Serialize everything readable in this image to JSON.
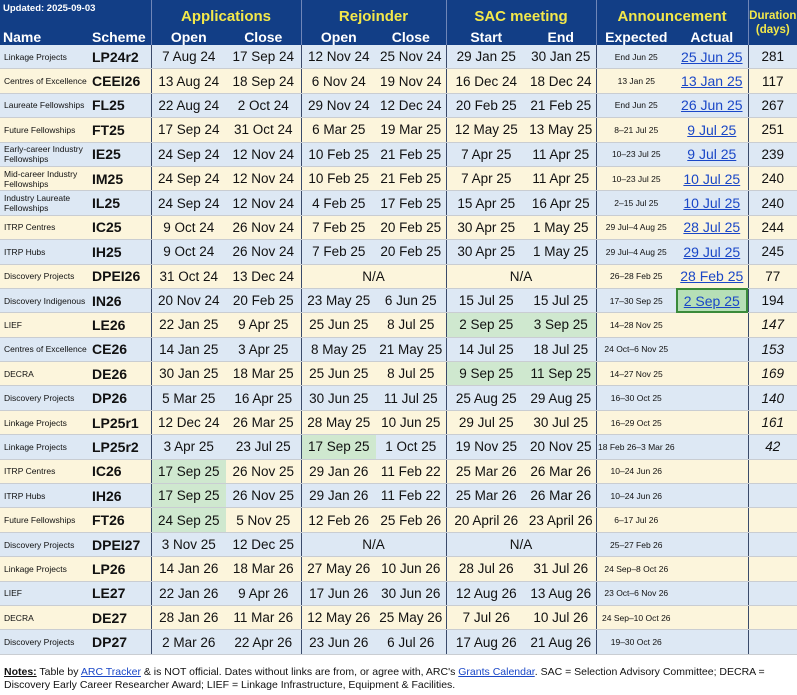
{
  "updated": "Updated: 2025-09-03",
  "headers": {
    "applications": "Applications",
    "rejoinder": "Rejoinder",
    "sac": "SAC meeting",
    "announcement": "Announcement",
    "duration": "Duration (days)",
    "name": "Name",
    "scheme": "Scheme",
    "open": "Open",
    "close": "Close",
    "start": "Start",
    "end": "End",
    "expected": "Expected",
    "actual": "Actual"
  },
  "rows": [
    {
      "name": "Linkage Projects",
      "scheme": "LP24r2",
      "app_open": "7 Aug 24",
      "app_close": "17 Sep 24",
      "rej_open": "12 Nov 24",
      "rej_close": "25 Nov 24",
      "sac_start": "29 Jan 25",
      "sac_end": "30 Jan 25",
      "expected": "End Jun 25",
      "actual": "25 Jun 25",
      "duration": "281"
    },
    {
      "name": "Centres of Excellence",
      "scheme": "CEEI26",
      "app_open": "13 Aug 24",
      "app_close": "18 Sep 24",
      "rej_open": "6 Nov 24",
      "rej_close": "19 Nov 24",
      "sac_start": "16 Dec 24",
      "sac_end": "18 Dec 24",
      "expected": "13 Jan 25",
      "actual": "13 Jan 25",
      "duration": "117"
    },
    {
      "name": "Laureate Fellowships",
      "scheme": "FL25",
      "app_open": "22 Aug 24",
      "app_close": "2 Oct 24",
      "rej_open": "29 Nov 24",
      "rej_close": "12 Dec 24",
      "sac_start": "20 Feb 25",
      "sac_end": "21 Feb 25",
      "expected": "End Jun 25",
      "actual": "26 Jun 25",
      "duration": "267"
    },
    {
      "name": "Future Fellowships",
      "scheme": "FT25",
      "app_open": "17 Sep 24",
      "app_close": "31 Oct 24",
      "rej_open": "6 Mar 25",
      "rej_close": "19 Mar 25",
      "sac_start": "12 May 25",
      "sac_end": "13 May 25",
      "expected": "8–21 Jul 25",
      "actual": "9 Jul 25",
      "duration": "251"
    },
    {
      "name": "Early-career Industry Fellowships",
      "scheme": "IE25",
      "app_open": "24 Sep 24",
      "app_close": "12 Nov 24",
      "rej_open": "10 Feb 25",
      "rej_close": "21 Feb 25",
      "sac_start": "7 Apr 25",
      "sac_end": "11 Apr 25",
      "expected": "10–23 Jul 25",
      "actual": "9 Jul 25",
      "duration": "239"
    },
    {
      "name": "Mid-career Industry Fellowships",
      "scheme": "IM25",
      "app_open": "24 Sep 24",
      "app_close": "12 Nov 24",
      "rej_open": "10 Feb 25",
      "rej_close": "21 Feb 25",
      "sac_start": "7 Apr 25",
      "sac_end": "11 Apr 25",
      "expected": "10–23 Jul 25",
      "actual": "10 Jul 25",
      "duration": "240"
    },
    {
      "name": "Industry Laureate Fellowships",
      "scheme": "IL25",
      "app_open": "24 Sep 24",
      "app_close": "12 Nov 24",
      "rej_open": "4 Feb 25",
      "rej_close": "17 Feb 25",
      "sac_start": "15 Apr 25",
      "sac_end": "16 Apr 25",
      "expected": "2–15 Jul 25",
      "actual": "10 Jul 25",
      "duration": "240"
    },
    {
      "name": "ITRP Centres",
      "scheme": "IC25",
      "app_open": "9 Oct 24",
      "app_close": "26 Nov 24",
      "rej_open": "7 Feb 25",
      "rej_close": "20 Feb 25",
      "sac_start": "30 Apr 25",
      "sac_end": "1 May 25",
      "expected": "29 Jul–4 Aug 25",
      "actual": "28 Jul 25",
      "duration": "244"
    },
    {
      "name": "ITRP Hubs",
      "scheme": "IH25",
      "app_open": "9 Oct 24",
      "app_close": "26 Nov 24",
      "rej_open": "7 Feb 25",
      "rej_close": "20 Feb 25",
      "sac_start": "30 Apr 25",
      "sac_end": "1 May 25",
      "expected": "29 Jul–4 Aug 25",
      "actual": "29 Jul 25",
      "duration": "245"
    },
    {
      "name": "Discovery Projects",
      "scheme": "DPEI26",
      "app_open": "31 Oct 24",
      "app_close": "13 Dec 24",
      "rej_na": "N/A",
      "sac_na": "N/A",
      "expected": "26–28 Feb 25",
      "actual": "28 Feb 25",
      "duration": "77"
    },
    {
      "name": "Discovery Indigenous",
      "scheme": "IN26",
      "app_open": "20 Nov 24",
      "app_close": "20 Feb 25",
      "rej_open": "23 May 25",
      "rej_close": "6 Jun 25",
      "sac_start": "15 Jul 25",
      "sac_end": "15 Jul 25",
      "expected": "17–30 Sep 25",
      "actual": "2 Sep 25",
      "duration": "194"
    },
    {
      "name": "LIEF",
      "scheme": "LE26",
      "app_open": "22 Jan 25",
      "app_close": "9 Apr 25",
      "rej_open": "25 Jun 25",
      "rej_close": "8 Jul 25",
      "sac_start": "2 Sep 25",
      "sac_end": "3 Sep 25",
      "expected": "14–28 Nov 25",
      "actual": "",
      "duration": "147"
    },
    {
      "name": "Centres of Excellence",
      "scheme": "CE26",
      "app_open": "14 Jan 25",
      "app_close": "3 Apr 25",
      "rej_open": "8 May 25",
      "rej_close": "21 May 25",
      "sac_start": "14 Jul 25",
      "sac_end": "18 Jul 25",
      "expected": "24 Oct–6 Nov 25",
      "actual": "",
      "duration": "153"
    },
    {
      "name": "DECRA",
      "scheme": "DE26",
      "app_open": "30 Jan 25",
      "app_close": "18 Mar 25",
      "rej_open": "25 Jun 25",
      "rej_close": "8 Jul 25",
      "sac_start": "9 Sep 25",
      "sac_end": "11 Sep 25",
      "expected": "14–27 Nov 25",
      "actual": "",
      "duration": "169"
    },
    {
      "name": "Discovery Projects",
      "scheme": "DP26",
      "app_open": "5 Mar 25",
      "app_close": "16 Apr 25",
      "rej_open": "30 Jun 25",
      "rej_close": "11 Jul 25",
      "sac_start": "25 Aug 25",
      "sac_end": "29 Aug 25",
      "expected": "16–30 Oct 25",
      "actual": "",
      "duration": "140"
    },
    {
      "name": "Linkage Projects",
      "scheme": "LP25r1",
      "app_open": "12 Dec 24",
      "app_close": "26 Mar 25",
      "rej_open": "28 May 25",
      "rej_close": "10 Jun 25",
      "sac_start": "29 Jul 25",
      "sac_end": "30 Jul 25",
      "expected": "16–29 Oct 25",
      "actual": "",
      "duration": "161"
    },
    {
      "name": "Linkage Projects",
      "scheme": "LP25r2",
      "app_open": "3 Apr 25",
      "app_close": "23 Jul 25",
      "rej_open": "17 Sep 25",
      "rej_close": "1 Oct 25",
      "sac_start": "19 Nov 25",
      "sac_end": "20 Nov 25",
      "expected": "18 Feb 26–3 Mar 26",
      "actual": "",
      "duration": "42"
    },
    {
      "name": "ITRP Centres",
      "scheme": "IC26",
      "app_open": "17 Sep 25",
      "app_close": "26 Nov 25",
      "rej_open": "29 Jan 26",
      "rej_close": "11 Feb 22",
      "sac_start": "25 Mar 26",
      "sac_end": "26 Mar 26",
      "expected": "10–24 Jun 26",
      "actual": "",
      "duration": ""
    },
    {
      "name": "ITRP Hubs",
      "scheme": "IH26",
      "app_open": "17 Sep 25",
      "app_close": "26 Nov 25",
      "rej_open": "29 Jan 26",
      "rej_close": "11 Feb 22",
      "sac_start": "25 Mar 26",
      "sac_end": "26 Mar 26",
      "expected": "10–24 Jun 26",
      "actual": "",
      "duration": ""
    },
    {
      "name": "Future Fellowships",
      "scheme": "FT26",
      "app_open": "24 Sep 25",
      "app_close": "5 Nov 25",
      "rej_open": "12 Feb 26",
      "rej_close": "25 Feb 26",
      "sac_start": "20 April 26",
      "sac_end": "23 April 26",
      "expected": "6–17 Jul 26",
      "actual": "",
      "duration": ""
    },
    {
      "name": "Discovery Projects",
      "scheme": "DPEI27",
      "app_open": "3 Nov 25",
      "app_close": "12 Dec 25",
      "rej_na": "N/A",
      "sac_na": "N/A",
      "expected": "25–27 Feb 26",
      "actual": "",
      "duration": ""
    },
    {
      "name": "Linkage Projects",
      "scheme": "LP26",
      "app_open": "14 Jan 26",
      "app_close": "18 Mar 26",
      "rej_open": "27 May 26",
      "rej_close": "10 Jun 26",
      "sac_start": "28 Jul 26",
      "sac_end": "31 Jul 26",
      "expected": "24 Sep–8 Oct 26",
      "actual": "",
      "duration": ""
    },
    {
      "name": "LIEF",
      "scheme": "LE27",
      "app_open": "22 Jan 26",
      "app_close": "9 Apr 26",
      "rej_open": "17 Jun 26",
      "rej_close": "30 Jun 26",
      "sac_start": "12 Aug 26",
      "sac_end": "13 Aug 26",
      "expected": "23 Oct–6 Nov 26",
      "actual": "",
      "duration": ""
    },
    {
      "name": "DECRA",
      "scheme": "DE27",
      "app_open": "28 Jan 26",
      "app_close": "11 Mar 26",
      "rej_open": "12 May 26",
      "rej_close": "25 May 26",
      "sac_start": "7 Jul 26",
      "sac_end": "10 Jul 26",
      "expected": "24 Sep–10 Oct 26",
      "actual": "",
      "duration": ""
    },
    {
      "name": "Discovery Projects",
      "scheme": "DP27",
      "app_open": "2 Mar 26",
      "app_close": "22 Apr 26",
      "rej_open": "23 Jun 26",
      "rej_close": "6 Jul 26",
      "sac_start": "17 Aug 26",
      "sac_end": "21 Aug 26",
      "expected": "19–30 Oct 26",
      "actual": "",
      "duration": ""
    }
  ],
  "notes": {
    "label": "Notes:",
    "t1": " Table by ",
    "link1": "ARC Tracker",
    "t2": " & is NOT official. Dates without links are from, or agree with, ARC's ",
    "link2": "Grants Calendar",
    "t3": ". SAC = Selection Advisory Committee; DECRA = Discovery Early Career Researcher Award; LIEF = Linkage Infrastructure, Equipment & Facilities."
  }
}
